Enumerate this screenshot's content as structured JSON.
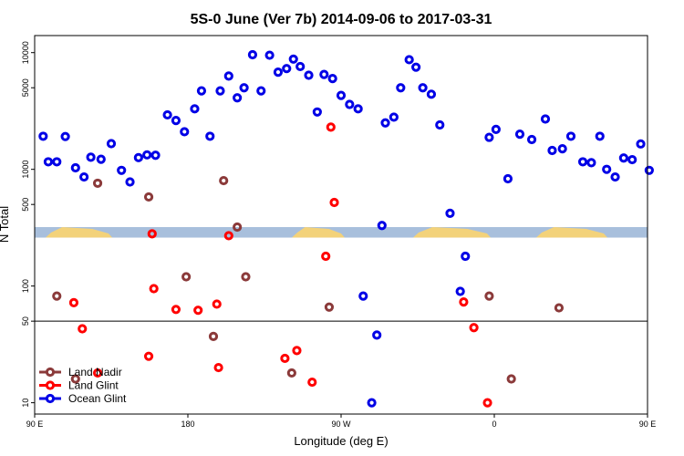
{
  "chart_data": {
    "type": "scatter",
    "title": "5S-0 June (Ver 7b)   2014-09-06 to 2017-03-31",
    "xlabel": "Longitude (deg E)",
    "ylabel": "N Total",
    "x_scale": "linear",
    "y_scale": "log",
    "xlim": [
      90,
      450
    ],
    "ylim": [
      8,
      14000
    ],
    "x_ticks": [
      {
        "value": 90,
        "label": "90 E"
      },
      {
        "value": 180,
        "label": "180"
      },
      {
        "value": 270,
        "label": "90 W"
      },
      {
        "value": 360,
        "label": "0"
      },
      {
        "value": 450,
        "label": "90 E"
      },
      {
        "value": 540,
        "label": "180"
      }
    ],
    "y_ticks": [
      {
        "value": 10,
        "label": "10"
      },
      {
        "value": 50,
        "label": "50"
      },
      {
        "value": 100,
        "label": "100"
      },
      {
        "value": 500,
        "label": "500"
      },
      {
        "value": 1000,
        "label": "1000"
      },
      {
        "value": 5000,
        "label": "5000"
      },
      {
        "value": 10000,
        "label": "10000"
      }
    ],
    "reference_line_y": 50,
    "map_strip": {
      "y_low": 260,
      "y_high": 320
    },
    "legend_position": "bottom-left",
    "series": [
      {
        "name": "Land Nadir",
        "color": "#8b3a3a",
        "points": [
          [
            103,
            82
          ],
          [
            114,
            16
          ],
          [
            127,
            760
          ],
          [
            157,
            580
          ],
          [
            179,
            120
          ],
          [
            195,
            37
          ],
          [
            201,
            800
          ],
          [
            209,
            320
          ],
          [
            214,
            120
          ],
          [
            241,
            18
          ],
          [
            263,
            66
          ],
          [
            357,
            82
          ],
          [
            370,
            16
          ],
          [
            398,
            65
          ]
        ]
      },
      {
        "name": "Land Glint",
        "color": "#ff0000",
        "points": [
          [
            113,
            72
          ],
          [
            118,
            43
          ],
          [
            127,
            18
          ],
          [
            157,
            25
          ],
          [
            159,
            280
          ],
          [
            160,
            95
          ],
          [
            173,
            63
          ],
          [
            186,
            62
          ],
          [
            197,
            70
          ],
          [
            198,
            20
          ],
          [
            204,
            270
          ],
          [
            237,
            24
          ],
          [
            244,
            28
          ],
          [
            253,
            15
          ],
          [
            261,
            180
          ],
          [
            264,
            2300
          ],
          [
            266,
            520
          ],
          [
            342,
            73
          ],
          [
            348,
            44
          ],
          [
            356,
            10
          ]
        ]
      },
      {
        "name": "Ocean Glint",
        "color": "#0000e6",
        "points": [
          [
            95,
            1920
          ],
          [
            98,
            1160
          ],
          [
            103,
            1160
          ],
          [
            108,
            1910
          ],
          [
            114,
            1030
          ],
          [
            119,
            860
          ],
          [
            123,
            1270
          ],
          [
            129,
            1220
          ],
          [
            135,
            1660
          ],
          [
            141,
            980
          ],
          [
            146,
            780
          ],
          [
            151,
            1260
          ],
          [
            156,
            1330
          ],
          [
            161,
            1320
          ],
          [
            168,
            2930
          ],
          [
            173,
            2620
          ],
          [
            178,
            2100
          ],
          [
            184,
            3300
          ],
          [
            188,
            4700
          ],
          [
            193,
            1920
          ],
          [
            199,
            4700
          ],
          [
            204,
            6300
          ],
          [
            209,
            4100
          ],
          [
            213,
            5000
          ],
          [
            218,
            9600
          ],
          [
            223,
            4700
          ],
          [
            228,
            9500
          ],
          [
            233,
            6800
          ],
          [
            238,
            7300
          ],
          [
            242,
            8800
          ],
          [
            246,
            7600
          ],
          [
            251,
            6400
          ],
          [
            256,
            3100
          ],
          [
            260,
            6500
          ],
          [
            265,
            6000
          ],
          [
            270,
            4300
          ],
          [
            275,
            3600
          ],
          [
            280,
            3300
          ],
          [
            283,
            82
          ],
          [
            288,
            10
          ],
          [
            291,
            38
          ],
          [
            294,
            330
          ],
          [
            296,
            2500
          ],
          [
            301,
            2800
          ],
          [
            305,
            5000
          ],
          [
            310,
            8700
          ],
          [
            314,
            7500
          ],
          [
            318,
            5000
          ],
          [
            323,
            4400
          ],
          [
            328,
            2400
          ],
          [
            334,
            420
          ],
          [
            340,
            90
          ],
          [
            343,
            180
          ],
          [
            357,
            1880
          ],
          [
            361,
            2200
          ],
          [
            368,
            830
          ],
          [
            375,
            2000
          ],
          [
            382,
            1800
          ],
          [
            390,
            2700
          ],
          [
            394,
            1450
          ],
          [
            400,
            1500
          ],
          [
            405,
            1920
          ],
          [
            412,
            1160
          ],
          [
            417,
            1140
          ],
          [
            422,
            1920
          ],
          [
            426,
            1000
          ],
          [
            431,
            860
          ],
          [
            436,
            1250
          ],
          [
            441,
            1210
          ],
          [
            446,
            1650
          ],
          [
            451,
            980
          ]
        ]
      }
    ]
  }
}
